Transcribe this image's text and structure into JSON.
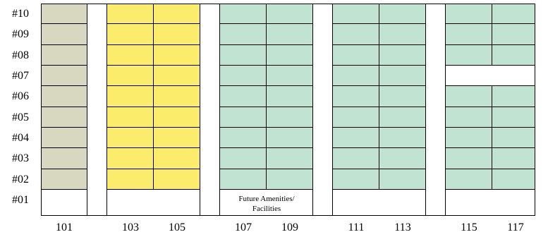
{
  "floors": [
    "#10",
    "#09",
    "#08",
    "#07",
    "#06",
    "#05",
    "#04",
    "#03",
    "#02",
    "#01"
  ],
  "units": [
    "101",
    "103",
    "105",
    "107",
    "109",
    "111",
    "113",
    "115",
    "117"
  ],
  "colors": {
    "gray": "#d8d8c1",
    "yellow": "#fbec6c",
    "green": "#c1e3d2",
    "white": "#ffffff",
    "line": "#000000"
  },
  "note": {
    "line1": "Future Amenities/",
    "line2": "Facilities"
  }
}
